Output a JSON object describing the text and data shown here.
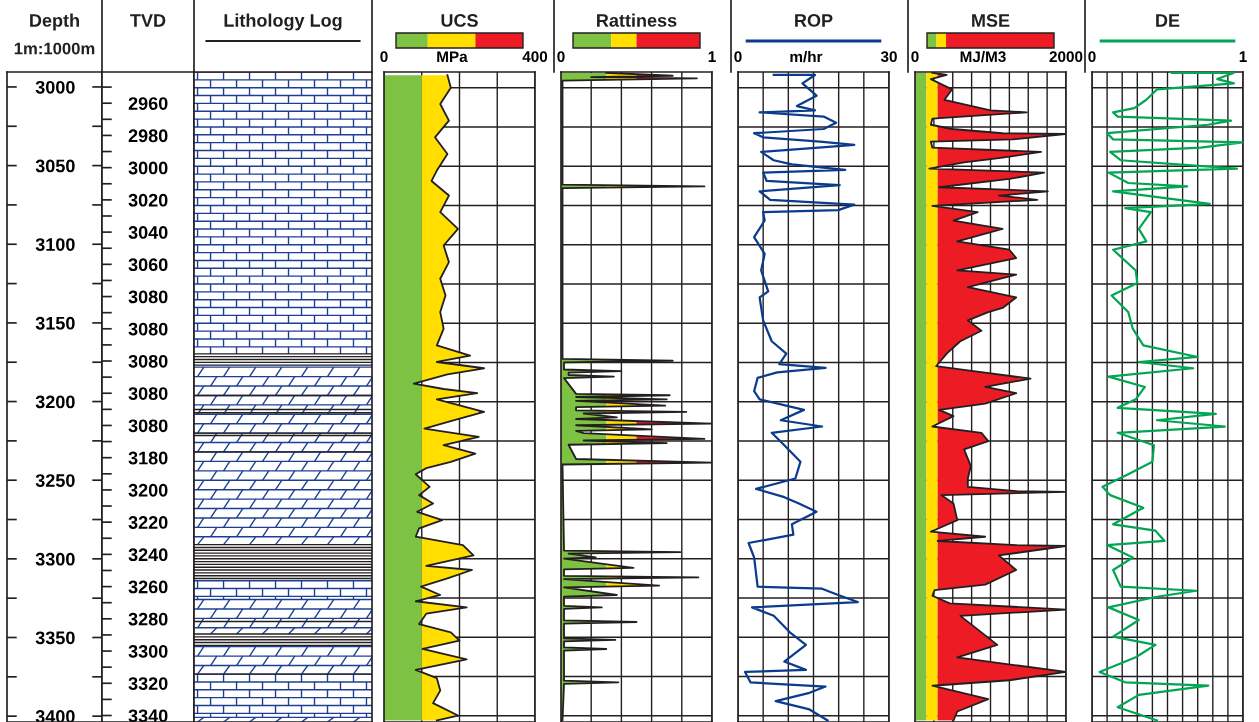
{
  "chart_data": [
    {
      "type": "other",
      "title": "Depth",
      "subtitle": "1m:1000m",
      "categories": [
        "3000",
        "3050",
        "3100",
        "3150",
        "3200",
        "3250",
        "3300",
        "3350",
        "3400"
      ]
    },
    {
      "type": "other",
      "title": "TVD",
      "categories": [
        "2960",
        "2980",
        "3000",
        "3020",
        "3040",
        "3060",
        "3080",
        "3080",
        "3080",
        "3080",
        "3080",
        "3180",
        "3200",
        "3220",
        "3240",
        "3260",
        "3280",
        "3300",
        "3320",
        "3340"
      ]
    },
    {
      "type": "other",
      "title": "Lithology Log"
    },
    {
      "type": "line",
      "title": "UCS",
      "xlabel": "MPa",
      "orientation": "horizontal",
      "xlim": [
        0,
        400
      ],
      "ylim": [
        3404,
        2990
      ],
      "tick_labels": "x",
      "grid": true,
      "xticks": [
        0,
        {
          "value": 100,
          "label": null
        },
        {
          "value": 200,
          "label": null
        },
        {
          "value": 300,
          "label": null
        },
        400
      ],
      "yticks": [
        3000,
        3025,
        3050,
        3075,
        3100,
        3125,
        3150,
        3175,
        3200,
        3225,
        3250,
        3275,
        3300,
        3325,
        3350,
        3375,
        3400
      ],
      "bands": [
        {
          "axis": "x",
          "from": 0,
          "to": 100,
          "color": "#7dc242"
        },
        {
          "axis": "x",
          "from": 100,
          "to": 250,
          "color": "#ffde00"
        },
        {
          "axis": "x",
          "from": 250,
          "to": 400,
          "color": "#ed1c24"
        }
      ],
      "series": [
        {
          "color": "#231f20",
          "x": [
            2992,
            3000,
            3010.4,
            3021,
            3031.6,
            3042.2,
            3052.8,
            3059.4,
            3068.7,
            3079.3,
            3089.9,
            3100.5,
            3111.1,
            3121.7,
            3132.3,
            3142.9,
            3153.5,
            3164.1,
            3170.7,
            3174.7,
            3178.7,
            3182.6,
            3188.5,
            3191.9,
            3194.5,
            3198.5,
            3206.5,
            3211.8,
            3217.1,
            3222.4,
            3227.7,
            3233,
            3238.3,
            3242.3,
            3246.2,
            3254.2,
            3259.5,
            3264.8,
            3270.1,
            3275.4,
            3280.7,
            3286,
            3291.3,
            3297.9,
            3304.5,
            3307.2,
            3312.5,
            3317.8,
            3323.1,
            3327.1,
            3331,
            3335,
            3341.6,
            3346.9,
            3352.2,
            3357.5,
            3364.1,
            3370.8,
            3376.1,
            3384,
            3392,
            3399.9,
            3403
          ],
          "values": [
            168,
            177,
            149,
            172,
            135,
            168,
            140,
            126,
            172,
            149,
            196,
            158,
            172,
            149,
            163,
            149,
            158,
            140,
            228,
            140,
            265,
            168,
            79,
            158,
            247,
            140,
            265,
            186,
            107,
            251,
            158,
            242,
            177,
            112,
            84,
            121,
            93,
            130,
            88,
            154,
            93,
            84,
            209,
            237,
            112,
            233,
            168,
            98,
            149,
            84,
            219,
            112,
            93,
            177,
            200,
            102,
            219,
            84,
            140,
            149,
            130,
            196,
            140
          ]
        }
      ]
    },
    {
      "type": "line",
      "title": "Rattiness",
      "orientation": "horizontal",
      "xlim": [
        0,
        1
      ],
      "ylim": [
        3404,
        2990
      ],
      "tick_labels": "x",
      "grid": true,
      "xticks": [
        0,
        {
          "value": 0.2,
          "label": null
        },
        {
          "value": 0.4,
          "label": null
        },
        {
          "value": 0.6,
          "label": null
        },
        {
          "value": 0.8,
          "label": null
        },
        1
      ],
      "yticks": [
        3000,
        3025,
        3050,
        3075,
        3100,
        3125,
        3150,
        3175,
        3200,
        3225,
        3250,
        3275,
        3300,
        3325,
        3350,
        3375,
        3400
      ],
      "bands": [
        {
          "axis": "x",
          "from": 0,
          "to": 0.3,
          "color": "#7dc242"
        },
        {
          "axis": "x",
          "from": 0.3,
          "to": 0.5,
          "color": "#ffde00"
        },
        {
          "axis": "x",
          "from": 0.5,
          "to": 1,
          "color": "#ed1c24"
        }
      ],
      "series": [
        {
          "color": "#231f20",
          "x": [
            2990.5,
            2992.4,
            2993.3,
            2994,
            2995.5,
            3061.7,
            3062.9,
            3064,
            3172.7,
            3173.9,
            3175,
            3179.5,
            3180.5,
            3181.5,
            3183,
            3184,
            3185,
            3195,
            3195.9,
            3197,
            3198.5,
            3199.5,
            3202.5,
            3203.5,
            3205.5,
            3206.5,
            3207.5,
            3210,
            3211,
            3213.9,
            3215,
            3217.6,
            3218.6,
            3220,
            3223.7,
            3224.7,
            3226.4,
            3227.4,
            3236.5,
            3238.8,
            3240,
            3294.8,
            3295.8,
            3296.8,
            3299.2,
            3300,
            3305.8,
            3306.8,
            3310.9,
            3311.9,
            3313,
            3317.2,
            3318.2,
            3323.1,
            3324.1,
            3330,
            3331,
            3332,
            3339.3,
            3340.3,
            3341.3,
            3350.7,
            3351.7,
            3352.7,
            3356.5,
            3357.5,
            3358.5,
            3377.7,
            3378.7,
            3379.7,
            3403
          ],
          "values": [
            0.3,
            0.74,
            0.2,
            0.9,
            0.01,
            0.01,
            0.95,
            0.01,
            0.01,
            0.74,
            0.02,
            0.02,
            0.4,
            0.05,
            0.05,
            0.35,
            0.02,
            0.1,
            0.72,
            0.1,
            0.7,
            0.1,
            0.69,
            0.1,
            0.1,
            0.83,
            0.15,
            0.37,
            0.1,
            1.0,
            0.1,
            0.6,
            0.1,
            0.15,
            0.95,
            0.15,
            0.7,
            0.05,
            0.1,
            1.0,
            0.01,
            0.02,
            0.79,
            0.05,
            0.23,
            0.02,
            0.48,
            0.02,
            0.02,
            0.91,
            0.02,
            0.65,
            0.02,
            0.37,
            0.02,
            0.02,
            0.27,
            0.02,
            0.02,
            0.5,
            0.02,
            0.02,
            0.36,
            0.02,
            0.02,
            0.3,
            0.02,
            0.02,
            0.38,
            0.02,
            0.01
          ]
        }
      ]
    },
    {
      "type": "line",
      "title": "ROP",
      "xlabel": "m/hr",
      "orientation": "horizontal",
      "xlim": [
        0,
        30
      ],
      "ylim": [
        3404,
        2990
      ],
      "tick_labels": "x",
      "grid": true,
      "xticks": [
        0,
        {
          "value": 5,
          "label": null
        },
        {
          "value": 10,
          "label": null
        },
        {
          "value": 15,
          "label": null
        },
        {
          "value": 20,
          "label": null
        },
        {
          "value": 25,
          "label": null
        },
        30
      ],
      "yticks": [
        3000,
        3025,
        3050,
        3075,
        3100,
        3125,
        3150,
        3175,
        3200,
        3225,
        3250,
        3275,
        3300,
        3325,
        3350,
        3375,
        3400
      ],
      "series": [
        {
          "color": "#0b3b8c",
          "x": [
            2991.9,
            2991.9,
            2997.2,
            3005.1,
            3011.7,
            3014.4,
            3015.7,
            3018.4,
            3022.3,
            3026.3,
            3029,
            3031.6,
            3034.3,
            3036.4,
            3038.2,
            3040.9,
            3046.2,
            3048.8,
            3052.3,
            3054.1,
            3059.4,
            3062.1,
            3066,
            3071.4,
            3074.5,
            3078,
            3079.3,
            3084.6,
            3095.2,
            3105.8,
            3116.4,
            3129.7,
            3133.6,
            3148.2,
            3161.5,
            3169.4,
            3176,
            3178.4,
            3181.3,
            3184.8,
            3193.3,
            3198.5,
            3205.2,
            3211.8,
            3215.8,
            3219.8,
            3227.7,
            3238.3,
            3248.9,
            3255.5,
            3260.8,
            3264.8,
            3270.1,
            3278,
            3284.7,
            3290,
            3299.2,
            3317.8,
            3319.1,
            3323.1,
            3327.6,
            3331,
            3336.3,
            3346.9,
            3354.9,
            3365.5,
            3370.8,
            3372.1,
            3378.8,
            3381.4,
            3385.4,
            3390.7,
            3396,
            3403
          ],
          "values": [
            7.1,
            15.3,
            12.8,
            15.6,
            11.7,
            15.3,
            4.3,
            17.0,
            19.5,
            17.0,
            3.2,
            5.0,
            16.3,
            23.1,
            16.0,
            4.6,
            7.1,
            10.7,
            21.3,
            5.0,
            5.7,
            20.2,
            4.3,
            6.4,
            23.1,
            19.9,
            5.0,
            5.3,
            3.2,
            5.3,
            4.6,
            6.0,
            4.3,
            5.0,
            6.7,
            9.6,
            8.2,
            17.4,
            7.8,
            3.9,
            3.2,
            4.3,
            13.1,
            8.5,
            16.7,
            6.7,
            9.2,
            12.4,
            11.4,
            3.6,
            9.2,
            12.1,
            15.6,
            10.7,
            11.0,
            2.1,
            3.2,
            3.9,
            16.7,
            19.9,
            23.8,
            2.8,
            7.1,
            10.3,
            13.5,
            9.2,
            13.5,
            1.4,
            2.5,
            17.4,
            14.2,
            7.5,
            14.2,
            17.8
          ]
        }
      ]
    },
    {
      "type": "line",
      "title": "MSE",
      "xlabel": "MJ/M3",
      "orientation": "horizontal",
      "xlim": [
        0,
        2000
      ],
      "ylim": [
        3404,
        2990
      ],
      "tick_labels": "x",
      "grid": true,
      "xticks": [
        0,
        {
          "value": 250,
          "label": null
        },
        {
          "value": 500,
          "label": null
        },
        {
          "value": 750,
          "label": null
        },
        {
          "value": 1000,
          "label": null
        },
        {
          "value": 1250,
          "label": null
        },
        {
          "value": 1500,
          "label": null
        },
        {
          "value": 1750,
          "label": null
        },
        2000
      ],
      "yticks": [
        3000,
        3025,
        3050,
        3075,
        3100,
        3125,
        3150,
        3175,
        3200,
        3225,
        3250,
        3275,
        3300,
        3325,
        3350,
        3375,
        3400
      ],
      "bands": [
        {
          "axis": "x",
          "from": 0,
          "to": 150,
          "color": "#7dc242"
        },
        {
          "axis": "x",
          "from": 150,
          "to": 300,
          "color": "#ffde00"
        },
        {
          "axis": "x",
          "from": 300,
          "to": 2000,
          "color": "#ed1c24"
        }
      ],
      "series": [
        {
          "color": "#231f20",
          "x": [
            2990.5,
            2991.9,
            2994.5,
            3001.1,
            3007.7,
            3014.4,
            3015.7,
            3017,
            3019.7,
            3023.6,
            3026.3,
            3029,
            3029.5,
            3032.9,
            3034.3,
            3038.2,
            3040.9,
            3044.9,
            3047.5,
            3051.5,
            3054.1,
            3058.1,
            3063.4,
            3066,
            3068.7,
            3071.4,
            3075.3,
            3079.3,
            3084.6,
            3089.9,
            3097.9,
            3103.2,
            3108.5,
            3116.4,
            3119.1,
            3127,
            3133.6,
            3140.3,
            3142.9,
            3148.2,
            3154.8,
            3161.5,
            3169.4,
            3177.4,
            3180,
            3185.3,
            3190.6,
            3194.6,
            3201.2,
            3205.2,
            3209.2,
            3215.8,
            3219.8,
            3225.1,
            3230.4,
            3241,
            3248.9,
            3254.2,
            3256.9,
            3257.4,
            3259.5,
            3264.8,
            3275.4,
            3282.8,
            3286,
            3288.7,
            3291.3,
            3291.9,
            3297.9,
            3307.2,
            3316.5,
            3320,
            3323.6,
            3328.4,
            3332.4,
            3336.4,
            3346.9,
            3354.9,
            3362.9,
            3372.1,
            3377.4,
            3380.9,
            3389.4,
            3397.3,
            3403
          ],
          "values": [
            230,
            420,
            210,
            490,
            390,
            1000,
            1480,
            1070,
            230,
            210,
            490,
            1160,
            1990,
            1300,
            210,
            230,
            1670,
            1110,
            650,
            190,
            1710,
            1250,
            320,
            1760,
            1110,
            1620,
            230,
            830,
            510,
            1160,
            560,
            1250,
            1340,
            560,
            1340,
            700,
            1340,
            1160,
            970,
            700,
            880,
            600,
            420,
            280,
            700,
            1530,
            930,
            1340,
            930,
            320,
            510,
            230,
            880,
            970,
            650,
            740,
            700,
            700,
            1340,
            2000,
            350,
            510,
            560,
            210,
            930,
            300,
            1340,
            2000,
            1110,
            1340,
            930,
            260,
            230,
            460,
            2000,
            600,
            880,
            1090,
            560,
            2000,
            1250,
            230,
            970,
            560,
            510
          ]
        }
      ]
    },
    {
      "type": "line",
      "title": "DE",
      "orientation": "horizontal",
      "xlim": [
        0,
        1
      ],
      "ylim": [
        3404,
        2990
      ],
      "tick_labels": "x",
      "grid": true,
      "xticks": [
        0,
        {
          "value": 0.1,
          "label": null
        },
        {
          "value": 0.2,
          "label": null
        },
        {
          "value": 0.3,
          "label": null
        },
        {
          "value": 0.4,
          "label": null
        },
        {
          "value": 0.5,
          "label": null
        },
        {
          "value": 0.6,
          "label": null
        },
        {
          "value": 0.7,
          "label": null
        },
        {
          "value": 0.8,
          "label": null
        },
        {
          "value": 0.9,
          "label": null
        },
        1
      ],
      "yticks": [
        3000,
        3025,
        3050,
        3075,
        3100,
        3125,
        3150,
        3175,
        3200,
        3225,
        3250,
        3275,
        3300,
        3325,
        3350,
        3375,
        3400
      ],
      "series": [
        {
          "color": "#00a651",
          "x": [
            2990.5,
            2990.5,
            2994.5,
            2997.2,
            3001.1,
            3007.7,
            3013,
            3015.7,
            3018.4,
            3021,
            3023.6,
            3029,
            3032.9,
            3034.8,
            3038.2,
            3040.9,
            3046.2,
            3051.5,
            3054.1,
            3060.7,
            3062.9,
            3066,
            3074,
            3076.7,
            3079.3,
            3089.9,
            3097.9,
            3103.2,
            3116.4,
            3124.4,
            3132.3,
            3142.9,
            3153.5,
            3164.1,
            3171.5,
            3174.7,
            3178.7,
            3184,
            3190.6,
            3198.5,
            3203.9,
            3207.8,
            3211.8,
            3215.8,
            3219.8,
            3227.7,
            3238.3,
            3246.2,
            3254.2,
            3259.5,
            3267.5,
            3278.1,
            3282.1,
            3288.7,
            3291.3,
            3299.2,
            3307.2,
            3317.8,
            3320.4,
            3324.4,
            3331,
            3339,
            3349.6,
            3354.9,
            3362.8,
            3372.1,
            3378.7,
            3380.8,
            3386.7,
            3394.6,
            3403
          ],
          "values": [
            0.53,
            0.94,
            0.83,
            0.94,
            0.43,
            0.36,
            0.28,
            0.14,
            0.17,
            0.92,
            0.77,
            0.1,
            0.14,
            1.0,
            0.72,
            0.12,
            0.19,
            0.96,
            0.11,
            0.24,
            0.63,
            0.14,
            0.78,
            0.22,
            0.39,
            0.31,
            0.36,
            0.14,
            0.29,
            0.3,
            0.13,
            0.24,
            0.27,
            0.34,
            0.7,
            0.31,
            0.67,
            0.11,
            0.35,
            0.29,
            0.17,
            0.82,
            0.43,
            0.88,
            0.17,
            0.41,
            0.4,
            0.24,
            0.07,
            0.12,
            0.34,
            0.14,
            0.42,
            0.48,
            0.1,
            0.27,
            0.14,
            0.19,
            0.69,
            0.42,
            0.11,
            0.31,
            0.14,
            0.42,
            0.29,
            0.05,
            0.22,
            0.77,
            0.31,
            0.17,
            0.43
          ]
        }
      ]
    }
  ]
}
